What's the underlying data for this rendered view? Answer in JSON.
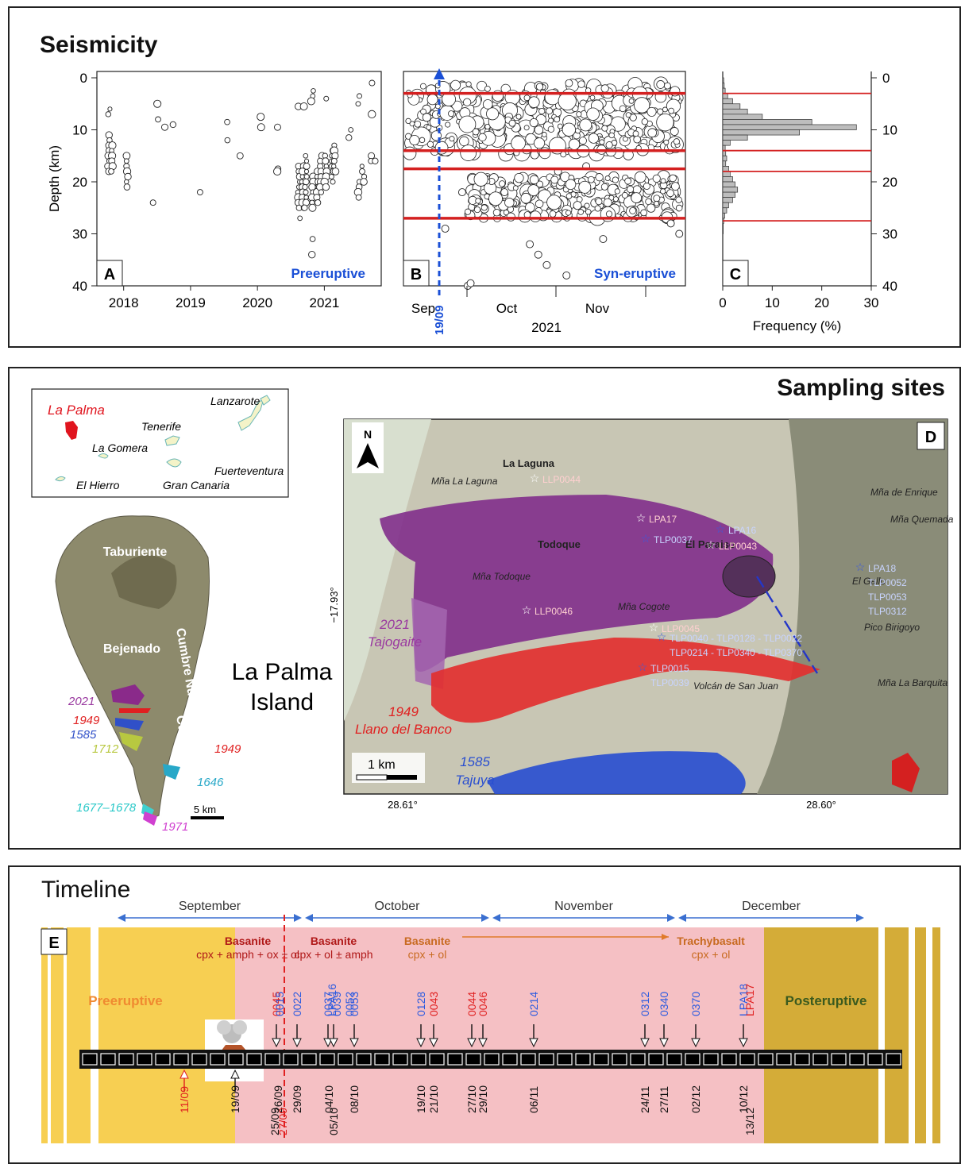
{
  "seismicity": {
    "title": "Seismicity",
    "panel_a": {
      "label": "A",
      "phase": "Preeruptive",
      "ylabel": "Depth (km)",
      "yticks": [
        "0",
        "10",
        "20",
        "30",
        "40"
      ],
      "xticks": [
        "2018",
        "2019",
        "2020",
        "2021"
      ]
    },
    "panel_b": {
      "label": "B",
      "phase": "Syn-eruptive",
      "xticks": [
        "Sep",
        "Oct",
        "Nov"
      ],
      "year": "2021",
      "onset": "19/09"
    },
    "panel_c": {
      "label": "C",
      "xlabel": "Frequency (%)",
      "xticks": [
        "0",
        "10",
        "20",
        "30"
      ],
      "yticks": [
        "0",
        "10",
        "20",
        "30",
        "40"
      ]
    },
    "colors": {
      "red_line": "#d42020",
      "blue": "#1a4fd6",
      "hist": "#bdbdbd"
    }
  },
  "chart_data": [
    {
      "type": "scatter",
      "panel": "A",
      "xlim": [
        2017.6,
        2021.85
      ],
      "ylim": [
        40,
        0
      ],
      "clusters": [
        {
          "x": 2017.78,
          "depths": [
            6,
            7,
            11,
            12,
            13,
            14,
            15,
            16,
            17,
            18
          ]
        },
        {
          "x": 2017.82,
          "depths": [
            13,
            14,
            15,
            16,
            17,
            18
          ]
        },
        {
          "x": 2018.05,
          "depths": [
            15,
            16,
            17,
            18,
            19,
            20,
            21
          ]
        },
        {
          "x": 2018.45,
          "depths": [
            24
          ]
        },
        {
          "x": 2018.52,
          "depths": [
            5,
            8
          ]
        },
        {
          "x": 2018.6,
          "depths": [
            9.5
          ]
        },
        {
          "x": 2018.75,
          "depths": [
            9
          ]
        },
        {
          "x": 2019.15,
          "depths": [
            22
          ]
        },
        {
          "x": 2019.55,
          "depths": [
            8.5,
            12
          ]
        },
        {
          "x": 2019.75,
          "depths": [
            15
          ]
        },
        {
          "x": 2020.05,
          "depths": [
            7.5,
            9.5
          ]
        },
        {
          "x": 2020.3,
          "depths": [
            9.5,
            17.5,
            18
          ]
        },
        {
          "x": 2020.62,
          "depths": [
            5.5,
            17,
            18,
            19,
            20,
            21,
            22,
            23,
            24,
            25,
            27
          ]
        },
        {
          "x": 2020.68,
          "depths": [
            5.5,
            17,
            18,
            19,
            20,
            21,
            22,
            23,
            24,
            25
          ]
        },
        {
          "x": 2020.72,
          "depths": [
            15,
            16,
            17,
            18,
            19,
            20,
            21,
            22,
            23,
            24,
            25
          ]
        },
        {
          "x": 2020.82,
          "depths": [
            2.5,
            3.5,
            4.5,
            19,
            20,
            21,
            22,
            23,
            24,
            25,
            31,
            34
          ]
        },
        {
          "x": 2020.9,
          "depths": [
            18,
            19,
            20,
            21,
            22,
            23,
            24
          ]
        },
        {
          "x": 2020.95,
          "depths": [
            15,
            16,
            17,
            18,
            19,
            20,
            21,
            22
          ]
        },
        {
          "x": 2021.02,
          "depths": [
            4,
            15,
            16,
            17,
            18,
            19,
            20,
            21
          ]
        },
        {
          "x": 2021.12,
          "depths": [
            14,
            15,
            16,
            17,
            18,
            19,
            20
          ]
        },
        {
          "x": 2021.15,
          "depths": [
            13,
            14,
            15,
            16,
            17,
            18
          ]
        },
        {
          "x": 2021.38,
          "depths": [
            10,
            11.5
          ]
        },
        {
          "x": 2021.52,
          "depths": [
            3.5,
            5,
            20,
            21,
            22,
            23
          ]
        },
        {
          "x": 2021.58,
          "depths": [
            17,
            18,
            19,
            20
          ]
        },
        {
          "x": 2021.7,
          "depths": [
            1,
            7,
            15,
            16
          ]
        },
        {
          "x": 2021.76,
          "depths": [
            16
          ]
        }
      ]
    },
    {
      "type": "scatter",
      "panel": "B",
      "xlim": [
        "2021-09-11",
        "2021-12-20"
      ],
      "ylim": [
        40,
        0
      ],
      "shallow_band_km": [
        3,
        14
      ],
      "deep_band_km": [
        17.5,
        27
      ],
      "outliers": [
        [
          12,
          29
        ],
        [
          18,
          22
        ],
        [
          42,
          32
        ],
        [
          45,
          34
        ],
        [
          48,
          36
        ],
        [
          52,
          18
        ],
        [
          55,
          38
        ],
        [
          68,
          31
        ],
        [
          92,
          28
        ],
        [
          95,
          30
        ],
        [
          20,
          40
        ],
        [
          21,
          39.5
        ],
        [
          62,
          17
        ],
        [
          33,
          22
        ]
      ],
      "band_lines_km": [
        3,
        14,
        17.5,
        27
      ],
      "onset_date": "2021-09-19"
    },
    {
      "type": "bar",
      "panel": "C",
      "orientation": "horizontal",
      "xlim": [
        0,
        30
      ],
      "ylim": [
        40,
        0
      ],
      "depths": [
        1,
        2,
        3,
        4,
        5,
        6,
        7,
        8,
        9,
        10,
        11,
        12,
        13,
        14,
        15,
        16,
        17,
        18,
        19,
        20,
        21,
        22,
        23,
        24,
        25,
        26,
        27,
        28,
        29,
        30
      ],
      "frequency": [
        0.2,
        0.3,
        0.5,
        1,
        2,
        3.5,
        5,
        8,
        18,
        27,
        15.5,
        5,
        1.5,
        0.5,
        0.6,
        0.8,
        0.6,
        1.2,
        1.5,
        2,
        2.5,
        3,
        2.5,
        2,
        1.2,
        0.8,
        0.4,
        0.2,
        0.1,
        0.1
      ],
      "red_lines_km": [
        3,
        14,
        18,
        27.5
      ]
    }
  ],
  "sampling": {
    "title": "Sampling sites",
    "inset_islands": [
      "La Palma",
      "Tenerife",
      "La Gomera",
      "Lanzarote",
      "Fuerteventura",
      "Gran Canaria",
      "El Hierro"
    ],
    "island_labels": [
      "Taburiente",
      "Bejenado",
      "Cumbre Nueva",
      "Cumbre Vieja"
    ],
    "island_name": "La Palma Island",
    "flows_years": [
      "2021",
      "1949",
      "1585",
      "1712",
      "1949",
      "1646",
      "1677–1678",
      "1971"
    ],
    "scale_label": "5 km",
    "map": {
      "label": "D",
      "north": "N",
      "places": [
        "La Laguna",
        "Mña La Laguna",
        "Todoque",
        "Mña Todoque",
        "El Paraiso",
        "Mña Cogote",
        "Volcán de San Juan",
        "Mña de Enrique",
        "Mña Quemada",
        "El Gallo",
        "Pico Birigoyo",
        "Mña La Barquita"
      ],
      "samples_red": [
        "LLP0044",
        "LPA17",
        "LLP0043",
        "LLP0046",
        "LLP0045"
      ],
      "samples_blue": [
        "LPA16",
        "TLP0037",
        "LPA18",
        "TLP0052",
        "TLP0053",
        "TLP0312",
        "TLP0040 - TLP0128 - TLP0022",
        "TLP0214 - TLP0340 - TLP0370",
        "TLP0015",
        "TLP0039"
      ],
      "flow_2021": "2021\nTajogaite",
      "flow_2021_a": "2021",
      "flow_2021_b": "Tajogaite",
      "flow_1949_a": "1949",
      "flow_1949_b": "Llano del Banco",
      "flow_1585_a": "1585",
      "flow_1585_b": "Tajuya",
      "scale": "1 km",
      "lat_label": "−17.93°",
      "lon_left": "28.61°",
      "lon_right": "28.60°"
    }
  },
  "timeline": {
    "title": "Timeline",
    "label": "E",
    "months": [
      "September",
      "October",
      "November",
      "December"
    ],
    "phases": {
      "pre": "Preeruptive",
      "post": "Posteruptive"
    },
    "rock_types": [
      {
        "name": "Basanite",
        "min": "cpx + amph + ox ± ol"
      },
      {
        "name": "Basanite",
        "min": "cpx + ol ± amph"
      },
      {
        "name": "Basanite",
        "min": "cpx + ol"
      },
      {
        "name": "Trachybasalt",
        "min": "cpx + ol"
      }
    ],
    "samples_top": [
      {
        "t": "0045",
        "color": "red"
      },
      {
        "t": "0015",
        "color": "blue"
      },
      {
        "t": "0022",
        "color": "blue"
      },
      {
        "t": "0037",
        "color": "blue"
      },
      {
        "t": "LPA16",
        "color": "blue"
      },
      {
        "t": "0039",
        "color": "blue"
      },
      {
        "t": "0052",
        "color": "blue"
      },
      {
        "t": "0053",
        "color": "blue"
      },
      {
        "t": "0128",
        "color": "blue"
      },
      {
        "t": "0043",
        "color": "red"
      },
      {
        "t": "0044",
        "color": "red"
      },
      {
        "t": "0046",
        "color": "red"
      },
      {
        "t": "0214",
        "color": "blue"
      },
      {
        "t": "0312",
        "color": "blue"
      },
      {
        "t": "0340",
        "color": "blue"
      },
      {
        "t": "0370",
        "color": "blue"
      },
      {
        "t": "LPA18",
        "color": "blue"
      },
      {
        "t": "LPA17",
        "color": "red"
      }
    ],
    "dates": [
      "11/09",
      "19/09",
      "25/09",
      "26/09",
      "27/09",
      "29/09",
      "04/10",
      "05/10",
      "08/10",
      "19/10",
      "21/10",
      "27/10",
      "29/10",
      "06/11",
      "24/11",
      "27/11",
      "02/12",
      "10/12",
      "13/12"
    ],
    "colors": {
      "pre": "#f7cf52",
      "syn": "#f5c0c4",
      "post": "#d4ac38",
      "arrow": "#3a6fd0"
    }
  }
}
